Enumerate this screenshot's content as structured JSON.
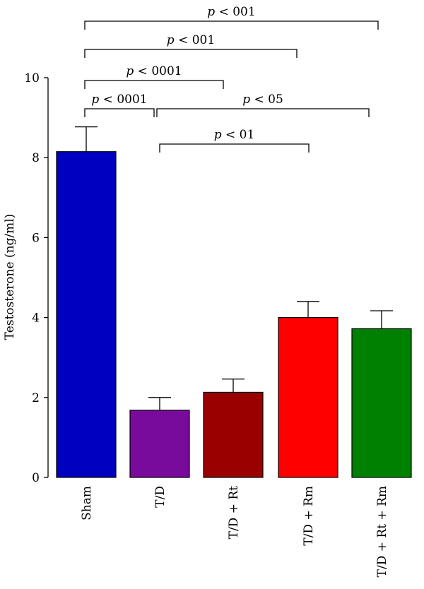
{
  "chart_data": {
    "type": "bar",
    "title": "",
    "xlabel": "",
    "ylabel": "Testosterone (ng/ml)",
    "ylim": [
      0,
      10
    ],
    "yticks": [
      "0",
      "2",
      "4",
      "6",
      "8",
      "10"
    ],
    "categories": [
      "Sham",
      "T/D",
      "T/D + Rt",
      "T/D + Rm",
      "T/D + Rt + Rm"
    ],
    "values": [
      8.15,
      1.68,
      2.13,
      4.0,
      3.72
    ],
    "errors": [
      0.62,
      0.32,
      0.33,
      0.4,
      0.45
    ],
    "colors": [
      "#0000c0",
      "#780a9c",
      "#990000",
      "#ff0000",
      "#008000"
    ],
    "comparisons": [
      {
        "from": 0,
        "to": 4,
        "label": "p < 001"
      },
      {
        "from": 0,
        "to": 3,
        "label": "p < 001"
      },
      {
        "from": 0,
        "to": 2,
        "label": "p < 0001"
      },
      {
        "from": 0,
        "to": 1,
        "label": "p < 0001"
      },
      {
        "from": 1,
        "to": 4,
        "label": "p < 05"
      },
      {
        "from": 1,
        "to": 3,
        "label": "p < 01"
      }
    ]
  }
}
